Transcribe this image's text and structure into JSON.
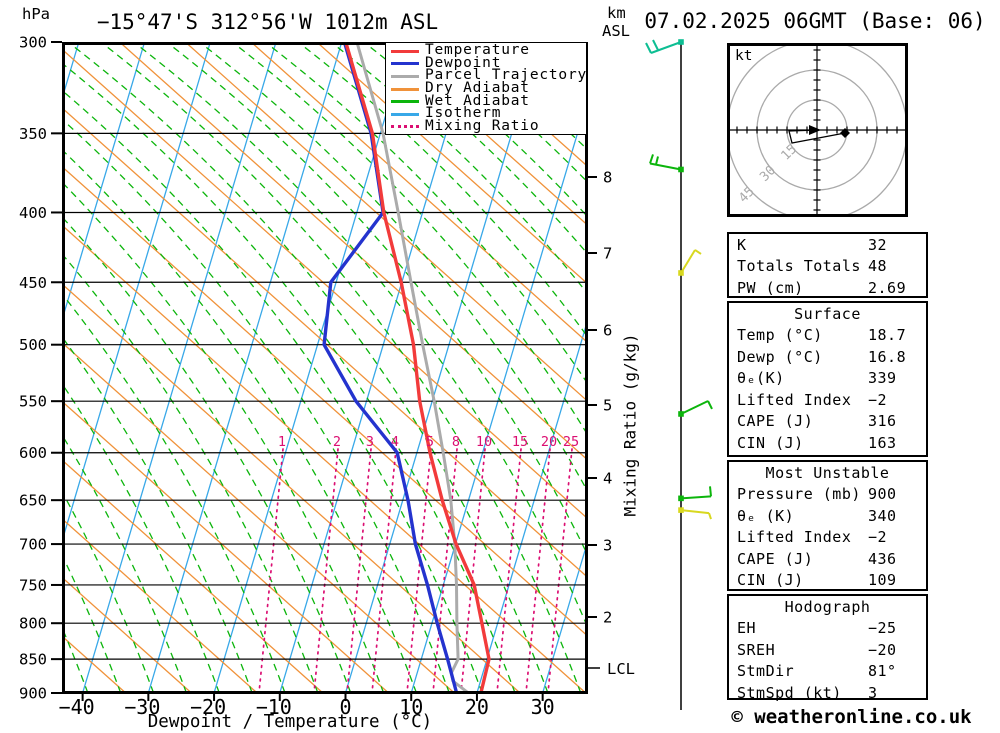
{
  "header": {
    "pressure_unit": "hPa",
    "station_title": "−15°47'S 312°56'W 1012m ASL",
    "altitude_unit_line1": "km",
    "altitude_unit_line2": "ASL",
    "run_title": "07.02.2025 06GMT (Base: 06)"
  },
  "legend": [
    {
      "label": "Temperature",
      "color": "#F23B3B",
      "style": "solid"
    },
    {
      "label": "Dewpoint",
      "color": "#2433CE",
      "style": "solid"
    },
    {
      "label": "Parcel Trajectory",
      "color": "#ABABAB",
      "style": "solid"
    },
    {
      "label": "Dry Adiabat",
      "color": "#F0923A",
      "style": "solid"
    },
    {
      "label": "Wet Adiabat",
      "color": "#0CB50C",
      "style": "solid"
    },
    {
      "label": "Isotherm",
      "color": "#38A8E8",
      "style": "solid"
    },
    {
      "label": "Mixing Ratio",
      "color": "#DB0F72",
      "style": "dotted"
    }
  ],
  "axes": {
    "pressure_ticks": [
      300,
      350,
      400,
      450,
      500,
      550,
      600,
      650,
      700,
      750,
      800,
      850,
      900
    ],
    "km_ticks": [
      8,
      7,
      6,
      5,
      4,
      3,
      2
    ],
    "lcl_label": "LCL",
    "temp_ticks": [
      -40,
      -30,
      -20,
      -10,
      0,
      10,
      20,
      30
    ],
    "x_axis_label": "Dewpoint / Temperature (°C)",
    "mixing_axis_label": "Mixing Ratio (g/kg)",
    "mixing_ratio_values": [
      1,
      2,
      3,
      4,
      5,
      8,
      10,
      15,
      20,
      25
    ]
  },
  "chart_data": {
    "type": "skewt_log_p_sounding",
    "pressure_hpa": [
      900,
      850,
      800,
      750,
      700,
      650,
      600,
      550,
      500,
      450,
      400,
      350,
      300
    ],
    "temperature_c": [
      20.6,
      20.3,
      17.6,
      14.7,
      10.1,
      6.0,
      2.0,
      -1.9,
      -5.4,
      -10.1,
      -15.9,
      -21.2,
      -29.4
    ],
    "dewpoint_c": [
      16.9,
      14.0,
      10.8,
      7.6,
      3.9,
      0.8,
      -3.0,
      -11.6,
      -19.0,
      -20.8,
      -16.0,
      -21.4,
      -29.6
    ],
    "parcel_c": [
      18.7,
      15.6,
      13.8,
      12.0,
      9.9,
      7.3,
      4.0,
      0.3,
      -4.0,
      -8.6,
      -13.7,
      -19.6,
      -27.7
    ],
    "lcl_pressure_hpa": 870,
    "pressure_range_hpa": [
      300,
      900
    ],
    "temp_axis_range_c": [
      -43,
      37
    ],
    "wind_barbs": [
      {
        "pressure_hpa": 300,
        "color": "#0DBE93"
      },
      {
        "pressure_hpa": 372,
        "color": "#0CB50C"
      },
      {
        "pressure_hpa": 443,
        "color": "#D8D81F"
      },
      {
        "pressure_hpa": 562,
        "color": "#0CB50C"
      },
      {
        "pressure_hpa": 648,
        "color": "#0CB50C"
      },
      {
        "pressure_hpa": 661,
        "color": "#D8D81F"
      }
    ],
    "hodograph": {
      "unit_label": "kt",
      "ring_labels": [
        15,
        30,
        45
      ],
      "kt_per_ring": 15,
      "trace_kt": [
        [
          0.5,
          0
        ],
        [
          -14,
          -0.5
        ],
        [
          -12.5,
          -6.5
        ],
        [
          14,
          -1.5
        ]
      ],
      "marker_kt": [
        14,
        -1.5
      ]
    }
  },
  "tables": {
    "indices": {
      "rows": [
        [
          "K",
          "32"
        ],
        [
          "Totals Totals",
          "48"
        ],
        [
          "PW (cm)",
          "2.69"
        ]
      ]
    },
    "surface": {
      "title": "Surface",
      "rows": [
        [
          "Temp (°C)",
          "18.7"
        ],
        [
          "Dewp (°C)",
          "16.8"
        ],
        [
          "θₑ(K)",
          "339"
        ],
        [
          "Lifted Index",
          "−2"
        ],
        [
          "CAPE (J)",
          "316"
        ],
        [
          "CIN (J)",
          "163"
        ]
      ]
    },
    "most_unstable": {
      "title": "Most Unstable",
      "rows": [
        [
          "Pressure (mb)",
          "900"
        ],
        [
          "θₑ (K)",
          "340"
        ],
        [
          "Lifted Index",
          "−2"
        ],
        [
          "CAPE (J)",
          "436"
        ],
        [
          "CIN (J)",
          "109"
        ]
      ]
    },
    "hodograph": {
      "title": "Hodograph",
      "rows": [
        [
          "EH",
          "−25"
        ],
        [
          "SREH",
          "−20"
        ],
        [
          "StmDir",
          "81°"
        ],
        [
          "StmSpd (kt)",
          "3"
        ]
      ]
    }
  },
  "footer": {
    "copyright": "© weatheronline.co.uk"
  }
}
